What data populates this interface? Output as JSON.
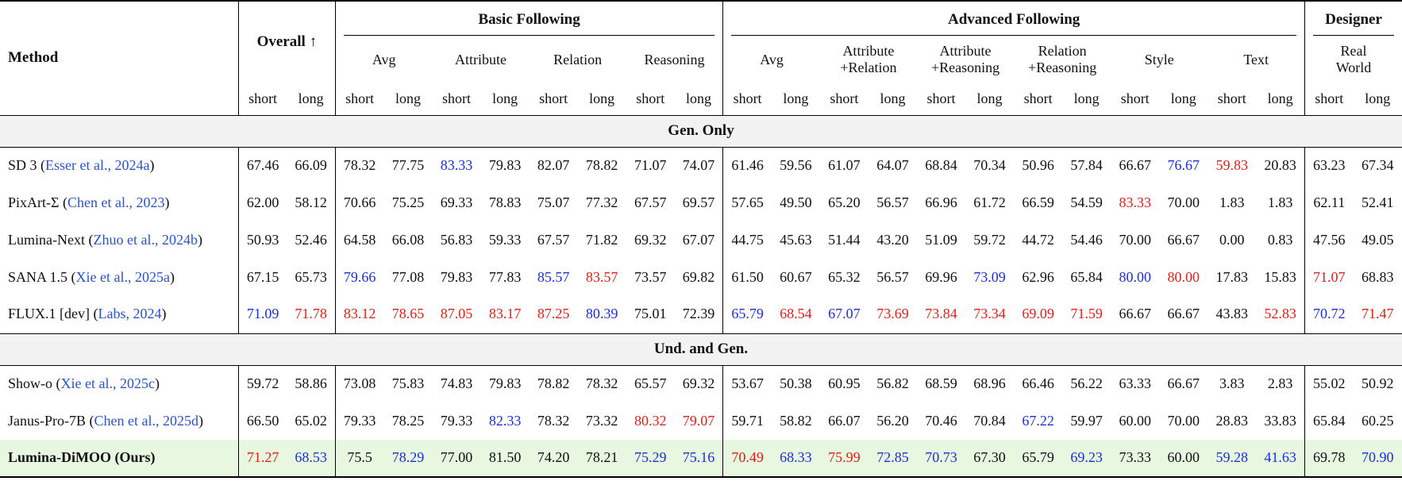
{
  "colors": {
    "best": "#e31e14",
    "second": "#1a2fd8",
    "citation": "#2a52cc",
    "highlight_row": "#e8f7e0",
    "section_band": "#f2f2f2"
  },
  "table": {
    "method_label": "Method",
    "overall_label": "Overall ↑",
    "short_label": "short",
    "long_label": "long",
    "groups": [
      {
        "label": "Basic Following",
        "subs": [
          "Avg",
          "Attribute",
          "Relation",
          "Reasoning"
        ]
      },
      {
        "label": "Advanced Following",
        "subs": [
          "Avg",
          "Attribute\n+Relation",
          "Attribute\n+Reasoning",
          "Relation\n+Reasoning",
          "Style",
          "Text"
        ]
      },
      {
        "label": "Designer",
        "subs": [
          "Real\nWorld"
        ]
      }
    ],
    "sections": [
      {
        "title": "Gen. Only",
        "rows": [
          {
            "method": "SD 3",
            "citation": "Esser et al., 2024a",
            "highlight": false,
            "values": [
              "67.46",
              "66.09",
              "78.32",
              "77.75",
              "83.33",
              "79.83",
              "82.07",
              "78.82",
              "71.07",
              "74.07",
              "61.46",
              "59.56",
              "61.07",
              "64.07",
              "68.84",
              "70.34",
              "50.96",
              "57.84",
              "66.67",
              "76.67",
              "59.83",
              "20.83",
              "63.23",
              "67.34"
            ],
            "colors": "kkkkbkkkkkkkkkkkkkkbrkkk"
          },
          {
            "method": "PixArt-Σ",
            "citation": "Chen et al., 2023",
            "highlight": false,
            "values": [
              "62.00",
              "58.12",
              "70.66",
              "75.25",
              "69.33",
              "78.83",
              "75.07",
              "77.32",
              "67.57",
              "69.57",
              "57.65",
              "49.50",
              "65.20",
              "56.57",
              "66.96",
              "61.72",
              "66.59",
              "54.59",
              "83.33",
              "70.00",
              "1.83",
              "1.83",
              "62.11",
              "52.41"
            ],
            "colors": "kkkkkkkkkkkkkkkkkkrkkkkk"
          },
          {
            "method": "Lumina-Next",
            "citation": "Zhuo et al., 2024b",
            "highlight": false,
            "values": [
              "50.93",
              "52.46",
              "64.58",
              "66.08",
              "56.83",
              "59.33",
              "67.57",
              "71.82",
              "69.32",
              "67.07",
              "44.75",
              "45.63",
              "51.44",
              "43.20",
              "51.09",
              "59.72",
              "44.72",
              "54.46",
              "70.00",
              "66.67",
              "0.00",
              "0.83",
              "47.56",
              "49.05"
            ],
            "colors": "kkkkkkkkkkkkkkkkkkkkkkkk"
          },
          {
            "method": "SANA 1.5",
            "citation": "Xie et al., 2025a",
            "highlight": false,
            "values": [
              "67.15",
              "65.73",
              "79.66",
              "77.08",
              "79.83",
              "77.83",
              "85.57",
              "83.57",
              "73.57",
              "69.82",
              "61.50",
              "60.67",
              "65.32",
              "56.57",
              "69.96",
              "73.09",
              "62.96",
              "65.84",
              "80.00",
              "80.00",
              "17.83",
              "15.83",
              "71.07",
              "68.83"
            ],
            "colors": "kkbkkkbrkkkkkkkbkkbrkkrk"
          },
          {
            "method": "FLUX.1 [dev]",
            "citation": "Labs, 2024",
            "highlight": false,
            "values": [
              "71.09",
              "71.78",
              "83.12",
              "78.65",
              "87.05",
              "83.17",
              "87.25",
              "80.39",
              "75.01",
              "72.39",
              "65.79",
              "68.54",
              "67.07",
              "73.69",
              "73.84",
              "73.34",
              "69.09",
              "71.59",
              "66.67",
              "66.67",
              "43.83",
              "52.83",
              "70.72",
              "71.47"
            ],
            "colors": "brrrrrrbkkbrbrrrrrkkkrbr"
          }
        ]
      },
      {
        "title": "Und. and Gen.",
        "rows": [
          {
            "method": "Show-o",
            "citation": "Xie et al., 2025c",
            "highlight": false,
            "values": [
              "59.72",
              "58.86",
              "73.08",
              "75.83",
              "74.83",
              "79.83",
              "78.82",
              "78.32",
              "65.57",
              "69.32",
              "53.67",
              "50.38",
              "60.95",
              "56.82",
              "68.59",
              "68.96",
              "66.46",
              "56.22",
              "63.33",
              "66.67",
              "3.83",
              "2.83",
              "55.02",
              "50.92"
            ],
            "colors": "kkkkkkkkkkkkkkkkkkkkkkkk"
          },
          {
            "method": "Janus-Pro-7B",
            "citation": "Chen et al., 2025d",
            "highlight": false,
            "values": [
              "66.50",
              "65.02",
              "79.33",
              "78.25",
              "79.33",
              "82.33",
              "78.32",
              "73.32",
              "80.32",
              "79.07",
              "59.71",
              "58.82",
              "66.07",
              "56.20",
              "70.46",
              "70.84",
              "67.22",
              "59.97",
              "60.00",
              "70.00",
              "28.83",
              "33.83",
              "65.84",
              "60.25"
            ],
            "colors": "kkkkkbkkrrkkkkkkbkkkkkkk"
          },
          {
            "method": "Lumina-DiMOO (Ours)",
            "citation": "",
            "highlight": true,
            "values": [
              "71.27",
              "68.53",
              "75.5",
              "78.29",
              "77.00",
              "81.50",
              "74.20",
              "78.21",
              "75.29",
              "75.16",
              "70.49",
              "68.33",
              "75.99",
              "72.85",
              "70.73",
              "67.30",
              "65.79",
              "69.23",
              "73.33",
              "60.00",
              "59.28",
              "41.63",
              "69.78",
              "70.90"
            ],
            "colors": "rbkbkkkkbbrbrbbkkbkkbbkb"
          }
        ]
      }
    ]
  }
}
